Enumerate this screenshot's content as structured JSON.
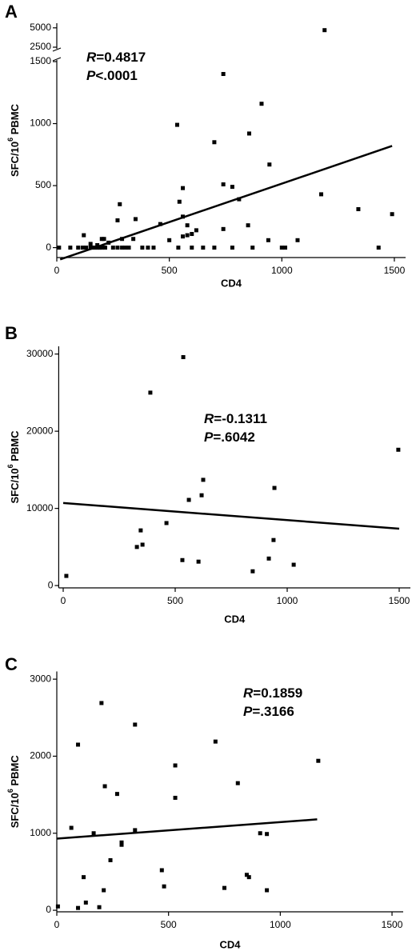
{
  "chart_data": [
    {
      "type": "scatter",
      "panel_label": "A",
      "xlabel": "CD4",
      "ylabel": {
        "base": "SFC/10",
        "sup": "6",
        "rest": " PBMC"
      },
      "stats": [
        {
          "symbol": "R",
          "text": "=0.4817"
        },
        {
          "symbol": "P",
          "text": "<.0001"
        }
      ],
      "color": "#000000",
      "x": [
        10,
        60,
        95,
        115,
        130,
        150,
        160,
        170,
        180,
        190,
        200,
        215,
        250,
        270,
        290,
        305,
        320,
        380,
        405,
        430,
        540,
        600,
        650,
        700,
        780,
        870,
        1000,
        1015,
        1430,
        1190,
        740,
        535,
        910,
        700,
        855,
        945,
        740,
        560,
        780,
        810,
        545,
        1175,
        1340,
        1490,
        280,
        270,
        350,
        560,
        460,
        580,
        620,
        740,
        850,
        120,
        200,
        210,
        290,
        340,
        500,
        580,
        600,
        940,
        1070,
        230,
        150,
        560,
        180
      ],
      "y": [
        0,
        0,
        0,
        0,
        0,
        0,
        0,
        0,
        0,
        0,
        0,
        0,
        0,
        0,
        0,
        0,
        0,
        0,
        0,
        0,
        0,
        0,
        0,
        0,
        0,
        0,
        0,
        0,
        0,
        4700,
        1400,
        990,
        1160,
        850,
        920,
        670,
        510,
        480,
        490,
        390,
        370,
        430,
        310,
        270,
        350,
        220,
        230,
        250,
        190,
        180,
        140,
        150,
        180,
        100,
        70,
        70,
        70,
        70,
        60,
        100,
        110,
        60,
        60,
        40,
        30,
        90,
        20
      ],
      "fit": {
        "x": [
          15,
          1490
        ],
        "y": [
          -95,
          820
        ]
      },
      "xlim": [
        0,
        1550
      ],
      "xticks": [
        0,
        500,
        1000,
        1500
      ],
      "ylim": [
        -80,
        5600
      ],
      "ybreak": [
        1500,
        2500
      ],
      "yticks": [
        0,
        500,
        1000,
        1500,
        2500,
        5000
      ]
    },
    {
      "type": "scatter",
      "panel_label": "B",
      "xlabel": "CD4",
      "ylabel": {
        "base": "SFC/10",
        "sup": "6",
        "rest": " PBMC"
      },
      "stats": [
        {
          "symbol": "R",
          "text": "=-0.1311"
        },
        {
          "symbol": "P",
          "text": "=.6042"
        }
      ],
      "color": "#000000",
      "x": [
        14,
        389,
        536,
        625,
        329,
        346,
        354,
        461,
        532,
        561,
        618,
        604,
        846,
        918,
        943,
        939,
        1029,
        1496
      ],
      "y": [
        1250,
        25000,
        29600,
        13700,
        5000,
        7150,
        5300,
        8100,
        3300,
        11100,
        11700,
        3100,
        1850,
        3500,
        12650,
        5900,
        2700,
        17600
      ],
      "fit": {
        "x": [
          0,
          1500
        ],
        "y": [
          10700,
          7370
        ]
      },
      "xlim": [
        -20,
        1550
      ],
      "xticks": [
        0,
        500,
        1000,
        1500
      ],
      "ylim": [
        -300,
        31000
      ],
      "yticks": [
        0,
        10000,
        20000,
        30000
      ]
    },
    {
      "type": "scatter",
      "panel_label": "C",
      "xlabel": "CD4",
      "ylabel": {
        "base": "SFC/10",
        "sup": "6",
        "rest": " PBMC"
      },
      "stats": [
        {
          "symbol": "R",
          "text": "=0.1859"
        },
        {
          "symbol": "P",
          "text": "=.3166"
        }
      ],
      "color": "#000000",
      "x": [
        5,
        65,
        95,
        95,
        120,
        130,
        165,
        190,
        200,
        210,
        215,
        240,
        270,
        290,
        290,
        350,
        350,
        470,
        480,
        530,
        530,
        750,
        710,
        810,
        850,
        860,
        910,
        940,
        940,
        1170
      ],
      "y": [
        50,
        1070,
        2150,
        30,
        430,
        100,
        1000,
        40,
        2690,
        260,
        1610,
        650,
        1510,
        850,
        880,
        2410,
        1040,
        520,
        310,
        1880,
        1460,
        290,
        2190,
        1650,
        460,
        430,
        1000,
        990,
        260,
        1940
      ],
      "fit": {
        "x": [
          0,
          1165
        ],
        "y": [
          930,
          1180
        ]
      },
      "xlim": [
        0,
        1550
      ],
      "xticks": [
        0,
        500,
        1000,
        1500
      ],
      "ylim": [
        -20,
        3100
      ],
      "yticks": [
        0,
        1000,
        2000,
        3000
      ]
    }
  ]
}
